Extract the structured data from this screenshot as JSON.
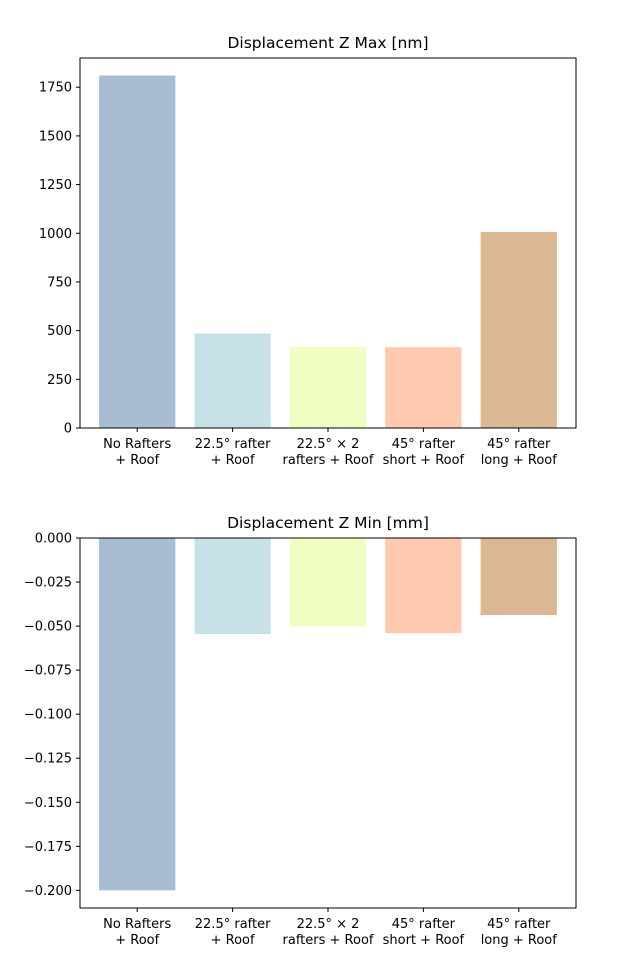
{
  "chart_data": [
    {
      "type": "bar",
      "title": "Displacement Z Max [nm]",
      "xlabel": "",
      "ylabel": "",
      "categories": [
        [
          "No Rafters",
          "+ Roof"
        ],
        [
          "22.5° rafter",
          "+ Roof"
        ],
        [
          "22.5° × 2",
          "rafters + Roof"
        ],
        [
          "45° rafter",
          "short + Roof"
        ],
        [
          "45° rafter",
          "long + Roof"
        ]
      ],
      "values": [
        1810,
        485,
        415,
        415,
        1007
      ],
      "colors": [
        "#a8bdd2",
        "#c6e2e8",
        "#efffc2",
        "#ffc9b0",
        "#dbb893"
      ],
      "ylim": [
        0,
        1900
      ],
      "yticks": [
        0,
        250,
        500,
        750,
        1000,
        1250,
        1500,
        1750
      ],
      "ytick_labels": [
        "0",
        "250",
        "500",
        "750",
        "1000",
        "1250",
        "1500",
        "1750"
      ],
      "grid": false,
      "legend": "none"
    },
    {
      "type": "bar",
      "title": "Displacement Z Min [mm]",
      "xlabel": "",
      "ylabel": "",
      "categories": [
        [
          "No Rafters",
          "+ Roof"
        ],
        [
          "22.5° rafter",
          "+ Roof"
        ],
        [
          "22.5° × 2",
          "rafters + Roof"
        ],
        [
          "45° rafter",
          "short + Roof"
        ],
        [
          "45° rafter",
          "long + Roof"
        ]
      ],
      "values": [
        -0.2,
        -0.0545,
        -0.0502,
        -0.054,
        -0.0437
      ],
      "colors": [
        "#a8bdd2",
        "#c6e2e8",
        "#efffc2",
        "#ffc9b0",
        "#dbb893"
      ],
      "ylim": [
        -0.21,
        0.0
      ],
      "yticks": [
        0.0,
        -0.025,
        -0.05,
        -0.075,
        -0.1,
        -0.125,
        -0.15,
        -0.175,
        -0.2
      ],
      "ytick_labels": [
        "0.000",
        "−0.025",
        "−0.050",
        "−0.075",
        "−0.100",
        "−0.125",
        "−0.150",
        "−0.175",
        "−0.200"
      ],
      "grid": false,
      "legend": "none"
    }
  ]
}
